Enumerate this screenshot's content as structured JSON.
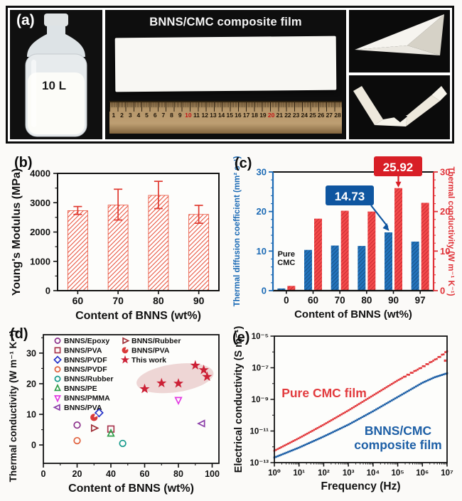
{
  "figure": {
    "panel_a": {
      "label": "(a)",
      "bottle_label": "10 L",
      "film_title": "BNNS/CMC composite film",
      "ruler_numbers": [
        1,
        2,
        3,
        4,
        5,
        6,
        7,
        8,
        9,
        10,
        11,
        12,
        13,
        14,
        15,
        16,
        17,
        18,
        19,
        20,
        21,
        22,
        23,
        24,
        25,
        26,
        27,
        28
      ],
      "ruler_red_numbers": [
        10,
        20
      ]
    },
    "panel_b": {
      "label": "(b)"
    },
    "panel_c": {
      "label": "(c)"
    },
    "panel_d": {
      "label": "(d)"
    },
    "panel_e": {
      "label": "(e)"
    }
  },
  "chart_data": [
    {
      "panel": "b",
      "type": "bar",
      "categories": [
        "60",
        "70",
        "80",
        "90"
      ],
      "values": [
        2730,
        2920,
        3250,
        2600
      ],
      "error_up": [
        140,
        540,
        480,
        310
      ],
      "error_down": [
        130,
        510,
        450,
        300
      ],
      "xlabel": "Content of BNNS (wt%)",
      "ylabel": "Young's Modulus (MPa)",
      "ylim": [
        0,
        4000
      ],
      "yticks": [
        0,
        1000,
        2000,
        3000,
        4000
      ],
      "bar_color": "#e8503a",
      "error_color": "#e0392f",
      "hatch": "diagonal"
    },
    {
      "panel": "c",
      "type": "bar",
      "categories": [
        "0",
        "60",
        "70",
        "80",
        "90",
        "97"
      ],
      "series": [
        {
          "name": "Thermal diffusion coefficient (mm² s⁻¹)",
          "axis": "left",
          "color": "#2273bc",
          "hatch_color": "#14436f",
          "values": [
            0.55,
            10.3,
            11.4,
            11.3,
            14.73,
            12.4
          ]
        },
        {
          "name": "Thermal conductivity (W m⁻¹ K⁻¹)",
          "axis": "right",
          "color": "#f24a4a",
          "hatch_color": "#b91c26",
          "values": [
            1.2,
            18.2,
            20.2,
            20.0,
            25.92,
            22.2
          ]
        }
      ],
      "annotations": [
        {
          "text": "25.92",
          "box_color": "#d81e26",
          "series": 1,
          "category": "90"
        },
        {
          "text": "14.73",
          "box_color": "#0f56a0",
          "series": 0,
          "category": "90"
        }
      ],
      "first_group_label": "Pure CMC",
      "xlabel": "Content of BNNS (wt%)",
      "ylabel_left": "Thermal diffusion coefficient (mm² s⁻¹)",
      "ylabel_right": "Thermal conductivity (W m⁻¹ K⁻¹)",
      "axis_left_color": "#1b6ab5",
      "axis_right_color": "#e03238",
      "ylim": [
        0,
        30
      ],
      "yticks": [
        0,
        10,
        20,
        30
      ]
    },
    {
      "panel": "d",
      "type": "scatter",
      "xlabel": "Content of BNNS (wt%)",
      "ylabel": "Thermal conductivity (W m⁻¹ K⁻¹)",
      "xlim": [
        0,
        104
      ],
      "xticks": [
        0,
        20,
        40,
        60,
        80,
        100
      ],
      "yticks": [
        0,
        10,
        20,
        30
      ],
      "series": [
        {
          "name": "BNNS/Epoxy",
          "marker": "circle",
          "color": "#8b2f8b",
          "filled": false,
          "points": [
            [
              20,
              6.5
            ]
          ]
        },
        {
          "name": "BNNS/PVA",
          "marker": "square",
          "color": "#a8374f",
          "filled": false,
          "points": [
            [
              40,
              5.2
            ]
          ]
        },
        {
          "name": "BNNS/PVDF",
          "marker": "diamond",
          "color": "#2431c8",
          "filled": false,
          "points": [
            [
              33,
              10.5
            ]
          ]
        },
        {
          "name": "BNNS/PVDF",
          "marker": "circle",
          "color": "#e0603c",
          "filled": false,
          "points": [
            [
              20,
              1.4
            ]
          ]
        },
        {
          "name": "BNNS/Rubber",
          "marker": "circle",
          "color": "#169a8c",
          "filled": false,
          "points": [
            [
              47,
              0.5
            ]
          ]
        },
        {
          "name": "BNNS/PE",
          "marker": "triangle-up",
          "color": "#2f9e4a",
          "filled": false,
          "points": [
            [
              40,
              3.7
            ]
          ]
        },
        {
          "name": "BNNS/PMMA",
          "marker": "triangle-down",
          "color": "#e23ae2",
          "filled": false,
          "points": [
            [
              80,
              14.7
            ]
          ]
        },
        {
          "name": "BNNS/PVA",
          "marker": "triangle-left",
          "color": "#8b3fa8",
          "filled": false,
          "points": [
            [
              94,
              7.0
            ]
          ]
        },
        {
          "name": "BNNS/Rubber",
          "marker": "triangle-right",
          "color": "#a03038",
          "filled": false,
          "points": [
            [
              30,
              5.5
            ]
          ]
        },
        {
          "name": "BNNS/PVA",
          "marker": "circle-half",
          "color": "#d93a3a",
          "filled": true,
          "points": [
            [
              30,
              9.0
            ]
          ]
        },
        {
          "name": "This work",
          "marker": "star",
          "color": "#cc2136",
          "filled": true,
          "points": [
            [
              60,
              18.3
            ],
            [
              70,
              20.2
            ],
            [
              80,
              20.1
            ],
            [
              90,
              26.0
            ],
            [
              95,
              24.5
            ],
            [
              97,
              22.3
            ]
          ]
        }
      ],
      "legend_columns": [
        [
          0,
          1,
          2,
          3,
          4,
          5,
          6,
          7
        ],
        [
          8,
          9,
          10
        ]
      ],
      "highlight_ellipse": {
        "cx": 78,
        "cy": 21.8,
        "rx": 23,
        "ry": 4.6,
        "rotation": -8,
        "color": "#d9a0a0",
        "opacity": 0.42
      }
    },
    {
      "panel": "e",
      "type": "line",
      "xscale": "log",
      "yscale": "log",
      "xlabel": "Frequency (Hz)",
      "ylabel": "Electrical conductivity (S m⁻¹)",
      "xtick_labels": [
        "10⁰",
        "10¹",
        "10²",
        "10³",
        "10⁴",
        "10⁵",
        "10⁶",
        "10⁷"
      ],
      "xtick_exponents": [
        0,
        1,
        2,
        3,
        4,
        5,
        6,
        7
      ],
      "ytick_labels": [
        "10⁻¹³",
        "10⁻¹¹",
        "10⁻⁹",
        "10⁻⁷",
        "10⁻⁵"
      ],
      "ytick_exponents": [
        -13,
        -11,
        -9,
        -7,
        -5
      ],
      "series": [
        {
          "name": "Pure CMC film",
          "color": "#e23b3e",
          "label_lines": [
            "Pure CMC film"
          ],
          "points_log10": [
            [
              0,
              -12.25
            ],
            [
              1,
              -11.45
            ],
            [
              2,
              -10.6
            ],
            [
              3,
              -9.7
            ],
            [
              4,
              -8.75
            ],
            [
              5,
              -7.8
            ],
            [
              6,
              -6.95
            ],
            [
              6.5,
              -6.5
            ],
            [
              6.8,
              -6.2
            ],
            [
              7,
              -5.95
            ]
          ]
        },
        {
          "name": "BNNS/CMC composite film",
          "color": "#1d5fa6",
          "label_lines": [
            "BNNS/CMC",
            "composite film"
          ],
          "points_log10": [
            [
              0,
              -12.68
            ],
            [
              1,
              -12.05
            ],
            [
              2,
              -11.35
            ],
            [
              3,
              -10.6
            ],
            [
              4,
              -9.75
            ],
            [
              5,
              -8.85
            ],
            [
              6,
              -7.95
            ],
            [
              6.5,
              -7.6
            ],
            [
              7,
              -7.35
            ]
          ]
        }
      ]
    }
  ]
}
